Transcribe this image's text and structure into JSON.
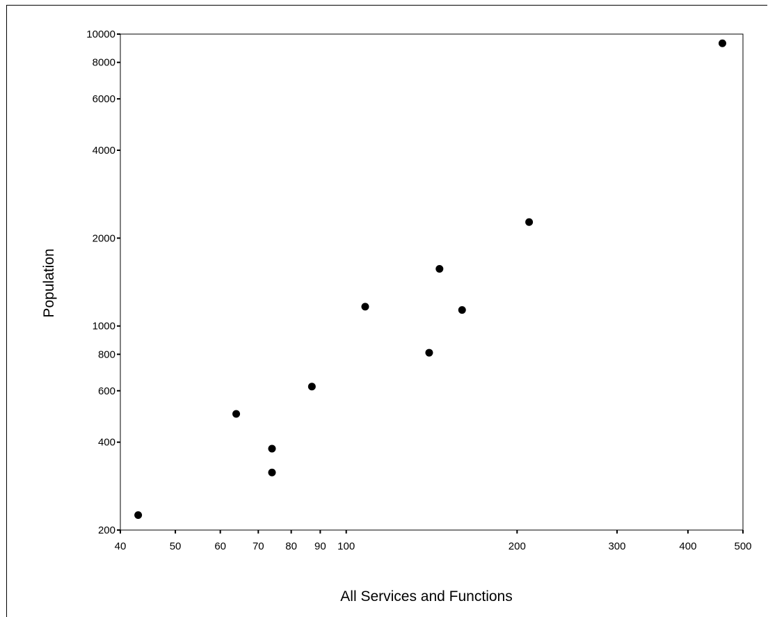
{
  "chart_data": {
    "type": "scatter",
    "title": "",
    "xlabel": "All Services and Functions",
    "ylabel": "Population",
    "x_scale": "log",
    "y_scale": "log",
    "xlim": [
      40,
      500
    ],
    "ylim": [
      200,
      10000
    ],
    "x_ticks": [
      40,
      50,
      60,
      70,
      80,
      90,
      100,
      200,
      300,
      400,
      500
    ],
    "x_tick_labels": [
      "40",
      "50",
      "60",
      "70",
      "80",
      "90",
      "100",
      "200",
      "300",
      "400",
      "500"
    ],
    "y_ticks": [
      200,
      400,
      600,
      800,
      1000,
      2000,
      4000,
      6000,
      8000,
      10000
    ],
    "y_tick_labels": [
      "200",
      "400",
      "600",
      "800",
      "1000",
      "2000",
      "4000",
      "6000",
      "8000",
      "10000"
    ],
    "grid": false,
    "legend": false,
    "marker_color": "#000000",
    "points": [
      {
        "x": 43,
        "y": 225
      },
      {
        "x": 64,
        "y": 500
      },
      {
        "x": 74,
        "y": 380
      },
      {
        "x": 74,
        "y": 315
      },
      {
        "x": 87,
        "y": 620
      },
      {
        "x": 108,
        "y": 1165
      },
      {
        "x": 140,
        "y": 810
      },
      {
        "x": 146,
        "y": 1570
      },
      {
        "x": 160,
        "y": 1135
      },
      {
        "x": 210,
        "y": 2270
      },
      {
        "x": 460,
        "y": 9300
      }
    ]
  }
}
